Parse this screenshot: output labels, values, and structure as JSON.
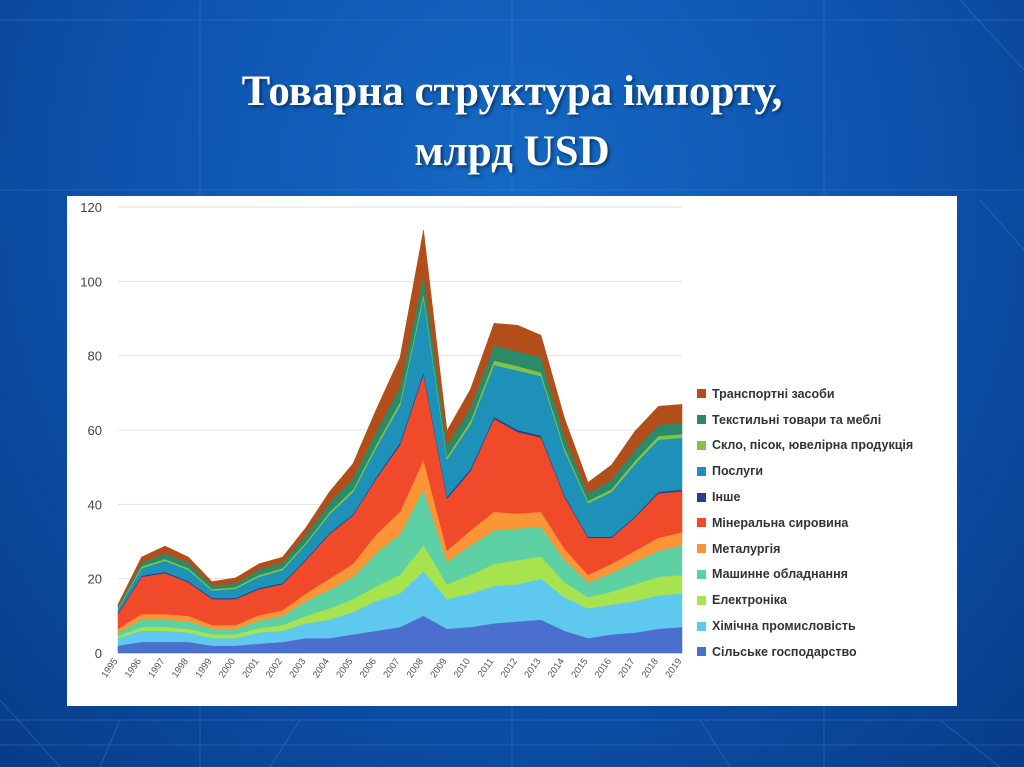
{
  "slide": {
    "title_line1": "Товарна структура імпорту,",
    "title_line2": "млрд USD"
  },
  "chart_data": {
    "type": "area",
    "stacked": true,
    "title": "",
    "xlabel": "",
    "ylabel": "",
    "ylim": [
      0,
      120
    ],
    "yticks": [
      0,
      20,
      40,
      60,
      80,
      100,
      120
    ],
    "grid": "horizontal",
    "legend_position": "right",
    "x": [
      "1995",
      "1996",
      "1997",
      "1998",
      "1999",
      "2000",
      "2001",
      "2002",
      "2003",
      "2004",
      "2005",
      "2006",
      "2007",
      "2008",
      "2009",
      "2010",
      "2011",
      "2012",
      "2013",
      "2014",
      "2015",
      "2016",
      "2017",
      "2018",
      "2019"
    ],
    "series": [
      {
        "name": "Сільське господарство",
        "color": "#4a6fcf",
        "values": [
          2,
          3,
          3,
          3,
          2,
          2,
          2.5,
          3,
          4,
          4,
          5,
          6,
          7,
          10,
          6.5,
          7,
          8,
          8.5,
          9,
          6,
          4,
          5,
          5.5,
          6.5,
          7
        ]
      },
      {
        "name": "Хімічна промисловість",
        "color": "#5ec8ef",
        "values": [
          2,
          3,
          3,
          2.5,
          2,
          2,
          3,
          3,
          4,
          5,
          6,
          8,
          9,
          12,
          8,
          9,
          10,
          10,
          11,
          9,
          8,
          8,
          8.5,
          9,
          9
        ]
      },
      {
        "name": "Електроніка",
        "color": "#a6e34e",
        "values": [
          0.5,
          1,
          1,
          1,
          1,
          1,
          1.2,
          1.5,
          2,
          3,
          3.5,
          4,
          5,
          7,
          4,
          5,
          6,
          6.5,
          6,
          4,
          3,
          3.5,
          4.5,
          5,
          5
        ]
      },
      {
        "name": "Машинне обладнання",
        "color": "#5ed1a4",
        "values": [
          1,
          2,
          2,
          2,
          1.5,
          1.5,
          2,
          2.5,
          4,
          5,
          6,
          9,
          11,
          15,
          6,
          8,
          9,
          8.5,
          8,
          6,
          4,
          5,
          6,
          7,
          8
        ]
      },
      {
        "name": "Металургія",
        "color": "#fb9535",
        "values": [
          1,
          1.5,
          1.5,
          1.5,
          1,
          1,
          1.5,
          1.5,
          2,
          3,
          3.5,
          5,
          6,
          8,
          3,
          4,
          5,
          4,
          4,
          3,
          2,
          2.5,
          3,
          3.5,
          3.5
        ]
      },
      {
        "name": "Мінеральна сировина",
        "color": "#f04a2a",
        "values": [
          4,
          10,
          11,
          9,
          7,
          7,
          7,
          7,
          9,
          12,
          13,
          15,
          18,
          23,
          14,
          16,
          25,
          22,
          20,
          14,
          10,
          7,
          9,
          12,
          11
        ]
      },
      {
        "name": "Інше",
        "color": "#223f8a",
        "values": [
          0.3,
          0.3,
          0.3,
          0.3,
          0.3,
          0.3,
          0.3,
          0.3,
          0.3,
          0.3,
          0.3,
          0.4,
          0.5,
          0.6,
          0.5,
          0.5,
          0.5,
          0.5,
          0.5,
          0.4,
          0.3,
          0.3,
          0.3,
          0.4,
          0.4
        ]
      },
      {
        "name": "Послуги",
        "color": "#1e91b8",
        "values": [
          1,
          2,
          3,
          3,
          2,
          2.5,
          3,
          3.5,
          4,
          5,
          6,
          8,
          10,
          20,
          10,
          12,
          14,
          16,
          16,
          12,
          9,
          12,
          14,
          14,
          14
        ]
      },
      {
        "name": "Скло, пісок, ювелірна продукція",
        "color": "#7fc447",
        "values": [
          0.3,
          0.5,
          0.5,
          0.5,
          0.4,
          0.4,
          0.5,
          0.5,
          0.5,
          0.6,
          0.7,
          0.8,
          1,
          1.2,
          0.8,
          1,
          1.2,
          1.2,
          1,
          0.8,
          0.6,
          0.8,
          0.9,
          1,
          1
        ]
      },
      {
        "name": "Текстильні товари та меблі",
        "color": "#2b8a68",
        "values": [
          0.5,
          1,
          1.5,
          1.5,
          1,
          1,
          1.5,
          1.5,
          2,
          2.5,
          3,
          3.5,
          4,
          5,
          3,
          3.5,
          4,
          4,
          4,
          3,
          2,
          2.5,
          3,
          3,
          3
        ]
      },
      {
        "name": "Транспортні засоби",
        "color": "#b14e1a",
        "values": [
          0.5,
          1.5,
          2,
          1.5,
          1,
          1.5,
          1.5,
          1.5,
          2,
          3,
          4,
          6,
          8,
          12,
          4,
          5,
          6,
          7,
          6,
          5,
          3,
          4,
          5,
          5,
          5
        ]
      }
    ]
  }
}
